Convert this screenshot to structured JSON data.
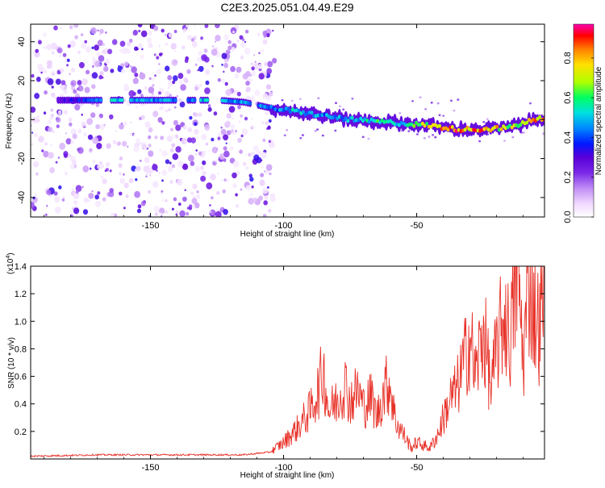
{
  "title": "C2E3.2025.051.04.49.E29",
  "colors": {
    "snr_line": "#e8332a",
    "axis": "#000000",
    "colormap": [
      "#ffffff",
      "#f0d8ff",
      "#c08cf5",
      "#7a28e8",
      "#5a00d8",
      "#0018ff",
      "#0088ff",
      "#00e0e0",
      "#00ff60",
      "#b0ff00",
      "#ffe000",
      "#ff8000",
      "#ff0000",
      "#ff00b0"
    ]
  },
  "chart_data": [
    {
      "type": "heatmap",
      "title": "C2E3.2025.051.04.49.E29",
      "xlabel": "Height of straight line (km)",
      "ylabel": "Frequency (Hz)",
      "xlim": [
        -195,
        -2
      ],
      "ylim": [
        -50,
        49
      ],
      "x_ticks": [
        -150,
        -100,
        -50
      ],
      "x_tick_labels": [
        "-150",
        "-100",
        "-50"
      ],
      "y_ticks": [
        40,
        20,
        0,
        -20,
        -40
      ],
      "y_tick_labels": [
        "40",
        "20",
        "0",
        "-20",
        "-40"
      ],
      "colorbar": {
        "label": "Normalized spectral amplitude",
        "range": [
          0,
          0.97
        ],
        "ticks": [
          0.0,
          0.2,
          0.4,
          0.6,
          0.8
        ],
        "tick_labels": [
          "0.0",
          "0.2",
          "0.4",
          "0.6",
          "0.8"
        ]
      },
      "noise_region_x": [
        -195,
        -103
      ],
      "ridge": {
        "x": [
          -190,
          -175,
          -160,
          -145,
          -125,
          -115,
          -105,
          -95,
          -85,
          -75,
          -65,
          -55,
          -45,
          -35,
          -25,
          -15,
          -8,
          -2
        ],
        "freq": [
          10,
          10,
          10,
          10,
          10,
          9,
          6,
          4,
          2,
          0,
          -1,
          -2,
          -3,
          -5,
          -5,
          -4,
          -1,
          1
        ],
        "amplitude": [
          0.3,
          0.4,
          0.6,
          0.5,
          0.55,
          0.55,
          0.45,
          0.6,
          0.5,
          0.55,
          0.65,
          0.55,
          0.8,
          0.95,
          0.9,
          0.75,
          0.85,
          0.95
        ]
      }
    },
    {
      "type": "line",
      "xlabel": "Height of straight line (km)",
      "ylabel": "SNR (10 * v/v)",
      "y_scale_label": "(x10",
      "y_scale_exp": "4",
      "y_scale_close": ")",
      "xlim": [
        -195,
        -2
      ],
      "ylim": [
        0,
        1.4
      ],
      "x_ticks": [
        -150,
        -100,
        -50
      ],
      "x_tick_labels": [
        "-150",
        "-100",
        "-50"
      ],
      "y_ticks": [
        0.2,
        0.4,
        0.6,
        0.8,
        1.0,
        1.2,
        1.4
      ],
      "y_tick_labels": [
        "0.2",
        "0.4",
        "0.6",
        "0.8",
        "1.0",
        "1.2",
        "1.4"
      ],
      "series": [
        {
          "name": "SNR",
          "x": [
            -195,
            -170,
            -150,
            -130,
            -115,
            -105,
            -100,
            -95,
            -90,
            -87,
            -85,
            -83,
            -80,
            -77,
            -75,
            -72,
            -70,
            -67,
            -65,
            -62,
            -60,
            -58,
            -55,
            -52,
            -50,
            -45,
            -42,
            -40,
            -37,
            -35,
            -32,
            -30,
            -28,
            -25,
            -22,
            -20,
            -17,
            -15,
            -12,
            -10,
            -8,
            -6,
            -4,
            -2
          ],
          "y": [
            0.02,
            0.03,
            0.03,
            0.03,
            0.03,
            0.05,
            0.12,
            0.22,
            0.35,
            0.5,
            0.64,
            0.35,
            0.42,
            0.55,
            0.42,
            0.5,
            0.38,
            0.45,
            0.3,
            0.52,
            0.55,
            0.28,
            0.18,
            0.08,
            0.12,
            0.08,
            0.18,
            0.3,
            0.45,
            0.5,
            0.72,
            0.9,
            0.6,
            0.95,
            0.5,
            0.8,
            1.05,
            0.85,
            1.41,
            0.7,
            1.3,
            1.1,
            0.95,
            1.18
          ]
        }
      ]
    }
  ]
}
